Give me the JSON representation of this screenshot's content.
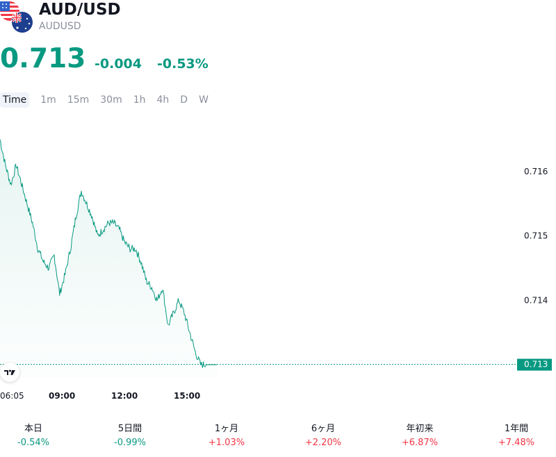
{
  "symbol": {
    "title": "AUD/USD",
    "ticker": "AUDUSD",
    "price": "0.713",
    "change": "-0.004",
    "change_percent": "-0.53%"
  },
  "tabs": [
    {
      "label": "Time",
      "active": true
    },
    {
      "label": "1m"
    },
    {
      "label": "15m"
    },
    {
      "label": "30m"
    },
    {
      "label": "1h"
    },
    {
      "label": "4h"
    },
    {
      "label": "D"
    },
    {
      "label": "W"
    }
  ],
  "colors": {
    "up": "#089981",
    "down": "#f23645",
    "line": "#089981"
  },
  "chart_data": {
    "type": "area",
    "x_ticks": [
      "06:05",
      "09:00",
      "12:00",
      "15:00"
    ],
    "y_ticks": [
      "0.716",
      "0.715",
      "0.714",
      "0.713"
    ],
    "ylim": [
      0.7128,
      0.7166
    ],
    "last_price_label": "0.713",
    "x": [
      "06:05",
      "06:20",
      "06:35",
      "06:50",
      "07:05",
      "07:20",
      "07:35",
      "07:50",
      "08:05",
      "08:20",
      "08:35",
      "08:50",
      "09:05",
      "09:20",
      "09:35",
      "09:50",
      "10:05",
      "10:20",
      "10:35",
      "10:50",
      "11:05",
      "11:20",
      "11:35",
      "11:50",
      "12:05",
      "12:20",
      "12:35",
      "12:50",
      "13:05",
      "13:20",
      "13:35",
      "13:50",
      "14:05",
      "14:20",
      "14:35",
      "14:50",
      "15:05",
      "15:20",
      "15:35",
      "15:50",
      "16:05"
    ],
    "values": [
      0.7165,
      0.7161,
      0.7158,
      0.7161,
      0.7158,
      0.7155,
      0.7152,
      0.7148,
      0.7146,
      0.7145,
      0.7147,
      0.7141,
      0.7144,
      0.7148,
      0.7153,
      0.7157,
      0.7155,
      0.7153,
      0.715,
      0.7151,
      0.7152,
      0.7152,
      0.7151,
      0.7149,
      0.7148,
      0.7148,
      0.7146,
      0.7143,
      0.7142,
      0.714,
      0.7142,
      0.7136,
      0.7138,
      0.714,
      0.7138,
      0.7135,
      0.7132,
      0.713,
      0.713,
      0.713,
      0.713
    ]
  },
  "performance": [
    {
      "label": "本日",
      "value": "-0.54%",
      "dir": "neg"
    },
    {
      "label": "5日間",
      "value": "-0.99%",
      "dir": "neg"
    },
    {
      "label": "1ヶ月",
      "value": "+1.03%",
      "dir": "pos"
    },
    {
      "label": "6ヶ月",
      "value": "+2.20%",
      "dir": "pos"
    },
    {
      "label": "年初来",
      "value": "+6.87%",
      "dir": "pos"
    },
    {
      "label": "1年間",
      "value": "+7.48%",
      "dir": "pos"
    }
  ]
}
